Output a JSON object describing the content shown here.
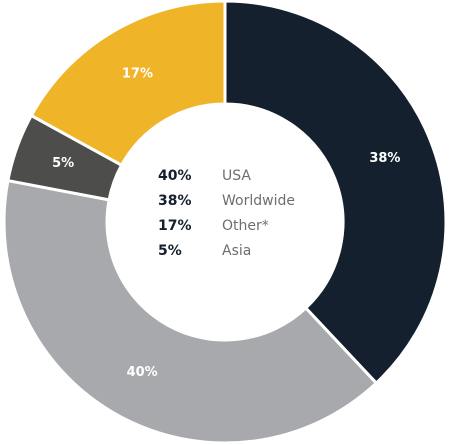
{
  "chart_data": {
    "type": "donut",
    "categories": [
      "Worldwide",
      "USA",
      "Asia",
      "Other*"
    ],
    "values": [
      38,
      40,
      5,
      17
    ],
    "value_labels": [
      "38%",
      "40%",
      "5%",
      "17%"
    ],
    "colors": [
      "#15202e",
      "#a7a9ac",
      "#4d4d4b",
      "#f0b429"
    ],
    "legend": [
      {
        "value": 40,
        "value_label": "40%",
        "name": "USA"
      },
      {
        "value": 38,
        "value_label": "38%",
        "name": "Worldwide"
      },
      {
        "value": 17,
        "value_label": "17%",
        "name": "Other*"
      },
      {
        "value": 5,
        "value_label": "5%",
        "name": "Asia"
      }
    ]
  }
}
